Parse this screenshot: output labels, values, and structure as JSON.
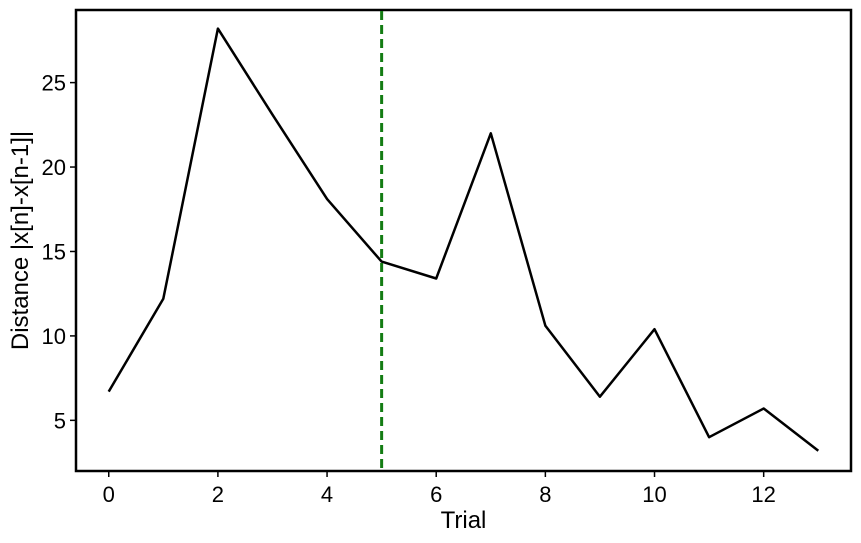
{
  "chart_data": {
    "type": "line",
    "title": "",
    "xlabel": "Trial",
    "ylabel": "Distance |x[n]-x[n-1]|",
    "xlim": [
      -0.6,
      13.6
    ],
    "ylim": [
      2.0,
      29.3
    ],
    "xticks": [
      0,
      2,
      4,
      6,
      8,
      10,
      12
    ],
    "xtick_labels": [
      "0",
      "2",
      "4",
      "6",
      "8",
      "10",
      "12"
    ],
    "yticks": [
      5,
      10,
      15,
      20,
      25
    ],
    "ytick_labels": [
      "5",
      "10",
      "15",
      "20",
      "25"
    ],
    "grid": false,
    "legend": "none",
    "series": [
      {
        "color": "#000000",
        "x": [
          0,
          1,
          2,
          3,
          4,
          5,
          6,
          7,
          8,
          9,
          10,
          11,
          12,
          13
        ],
        "y": [
          6.7,
          12.2,
          28.2,
          23.1,
          18.1,
          14.4,
          13.4,
          22.0,
          10.6,
          6.4,
          10.4,
          4.0,
          5.7,
          3.2
        ]
      }
    ],
    "vline": {
      "x": 5,
      "color": "#137c13",
      "style": "dashed"
    }
  }
}
